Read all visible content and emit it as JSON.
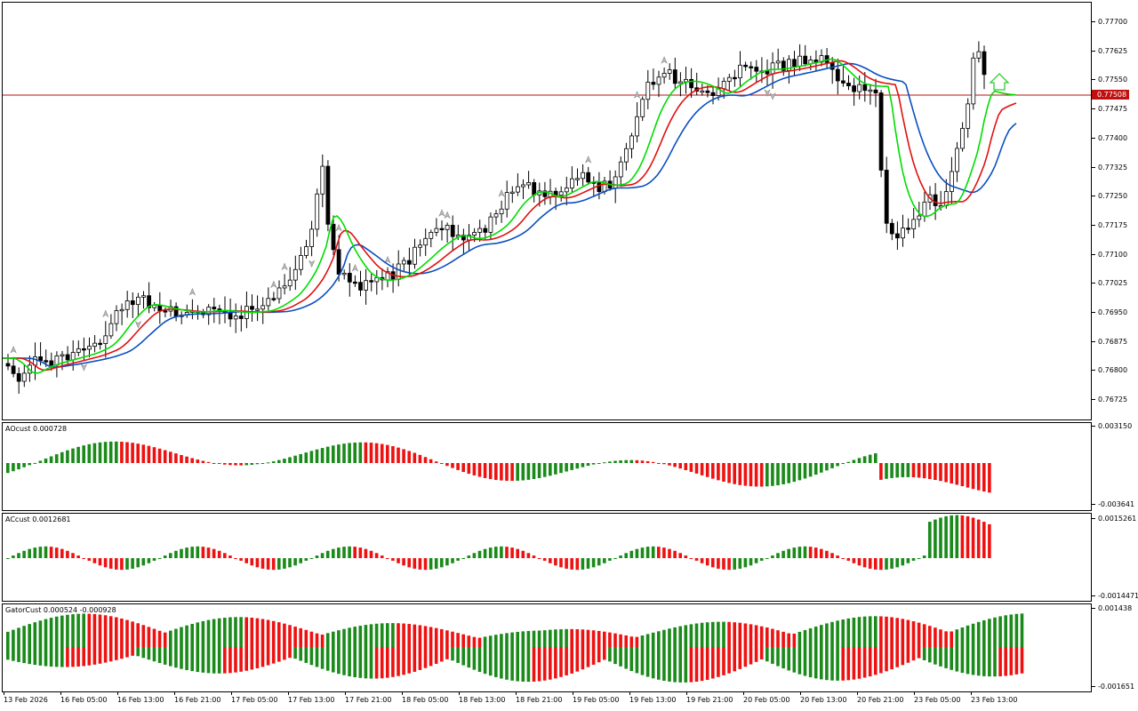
{
  "symbol_chart": {
    "current_price": "0.77508",
    "price_axis": [
      "0.77700",
      "0.77625",
      "0.77550",
      "0.77475",
      "0.77400",
      "0.77325",
      "0.77250",
      "0.77175",
      "0.77100",
      "0.77025",
      "0.76950",
      "0.76875",
      "0.76800",
      "0.76725"
    ],
    "colors": {
      "bull_body": "#ffffff",
      "bear_body": "#000000",
      "fast_ma": "#00dd00",
      "mid_ma": "#e01010",
      "slow_ma": "#0a4fc0",
      "price_line": "#b81010",
      "arrow_up": "#33cc33"
    }
  },
  "indicators": {
    "ao": {
      "label": "AOcust 0.000728",
      "max": "0.003150",
      "min": "-0.003641"
    },
    "ac": {
      "label": "ACcust 0.0012681",
      "max": "0.0015261",
      "min": "-0.0014471"
    },
    "gator": {
      "label": "GatorCust 0.000524 -0.000928",
      "max": "0.001438",
      "min": "-0.001651"
    }
  },
  "time_axis": [
    "13 Feb 2026",
    "16 Feb 05:00",
    "16 Feb 13:00",
    "16 Feb 21:00",
    "17 Feb 05:00",
    "17 Feb 13:00",
    "17 Feb 21:00",
    "18 Feb 05:00",
    "18 Feb 13:00",
    "18 Feb 21:00",
    "19 Feb 05:00",
    "19 Feb 13:00",
    "19 Feb 21:00",
    "20 Feb 05:00",
    "20 Feb 13:00",
    "20 Feb 21:00",
    "23 Feb 05:00",
    "23 Feb 13:00"
  ]
}
